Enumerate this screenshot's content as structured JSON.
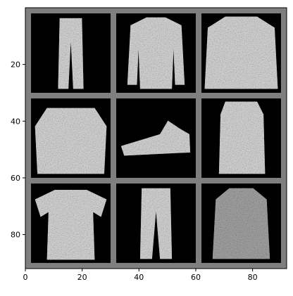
{
  "figure": {
    "type": "image-grid",
    "description_visible": "",
    "grid": {
      "rows": 3,
      "cols": 3
    },
    "axes": {
      "x_ticks": [
        "0",
        "20",
        "40",
        "60",
        "80"
      ],
      "y_ticks": [
        "20",
        "40",
        "60",
        "80"
      ],
      "x_range": [
        0,
        92
      ],
      "y_range": [
        0,
        92
      ],
      "tick_values_x": [
        0,
        20,
        40,
        60,
        80
      ],
      "tick_values_y": [
        20,
        40,
        60,
        80
      ]
    },
    "colors": {
      "background": "#ffffff",
      "frame_gray": "#7f7f7f",
      "tile_black": "#000000",
      "garment_light": "#dcdcdc"
    },
    "tiles": [
      {
        "name": "trousers"
      },
      {
        "name": "sweater"
      },
      {
        "name": "pullover"
      },
      {
        "name": "pullover"
      },
      {
        "name": "sneaker"
      },
      {
        "name": "dress"
      },
      {
        "name": "t-shirt"
      },
      {
        "name": "trousers"
      },
      {
        "name": "coat"
      }
    ]
  }
}
